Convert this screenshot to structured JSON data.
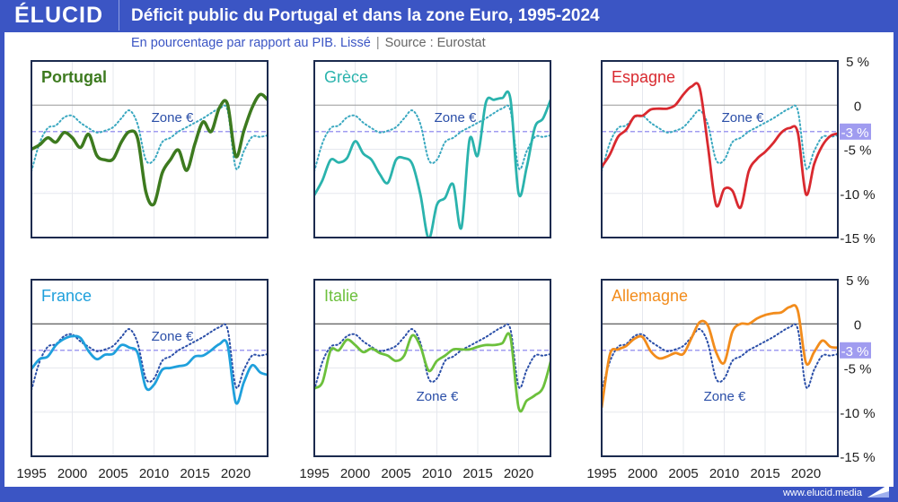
{
  "header": {
    "logo": "ÉLUCID",
    "title": "Déficit public du Portugal et dans la zone Euro, 1995-2024",
    "subtitle": "En pourcentage par rapport au PIB. Lissé",
    "source": "Source : Eurostat"
  },
  "footer": {
    "url": "www.elucid.media"
  },
  "colors": {
    "brand": "#3b55c4",
    "threshold": "#a09cf0",
    "zone_top": "#3aa8c0",
    "zone_bottom": "#2b4fa8"
  },
  "chart_data": {
    "type": "line",
    "layout": "small-multiples 2x3",
    "x": [
      1995,
      1996,
      1997,
      1998,
      1999,
      2000,
      2001,
      2002,
      2003,
      2004,
      2005,
      2006,
      2007,
      2008,
      2009,
      2010,
      2011,
      2012,
      2013,
      2014,
      2015,
      2016,
      2017,
      2018,
      2019,
      2020,
      2021,
      2022,
      2023,
      2024
    ],
    "xlim": [
      1995,
      2024
    ],
    "ylim": [
      -15,
      5
    ],
    "y_ticks": [
      "5 %",
      "0",
      "-3 %",
      "-5 %",
      "-10 %",
      "-15 %"
    ],
    "y_tick_values": [
      5,
      0,
      -3,
      -5,
      -10,
      -15
    ],
    "x_ticks": [
      "1995",
      "2000",
      "2005",
      "2010",
      "2015",
      "2020"
    ],
    "x_tick_values": [
      1995,
      2000,
      2005,
      2010,
      2015,
      2020
    ],
    "threshold": -3,
    "grid": true,
    "reference": {
      "label": "Zone €",
      "values": [
        -7.5,
        -4.3,
        -2.6,
        -2.3,
        -1.4,
        -1.2,
        -2.0,
        -2.6,
        -3.1,
        -2.9,
        -2.5,
        -1.5,
        -0.6,
        -2.2,
        -6.2,
        -6.2,
        -4.2,
        -3.7,
        -3.0,
        -2.5,
        -2.0,
        -1.5,
        -0.9,
        -0.4,
        -0.6,
        -7.1,
        -5.2,
        -3.6,
        -3.6,
        -3.4
      ]
    },
    "panels": [
      {
        "name": "Portugal",
        "color": "#3d7a1f",
        "bold": true,
        "ref_label_pos": "above",
        "values": [
          -5.0,
          -4.5,
          -3.7,
          -4.2,
          -3.1,
          -3.7,
          -4.8,
          -3.3,
          -5.7,
          -6.2,
          -6.1,
          -4.2,
          -3.0,
          -3.8,
          -9.8,
          -11.2,
          -7.7,
          -6.2,
          -5.1,
          -7.4,
          -4.4,
          -1.9,
          -3.0,
          -0.3,
          0.1,
          -5.8,
          -2.9,
          -0.3,
          1.2,
          0.5
        ]
      },
      {
        "name": "Grèce",
        "color": "#2ab3ad",
        "bold": false,
        "ref_label_pos": "above",
        "values": [
          -10.2,
          -8.5,
          -6.2,
          -6.5,
          -6.0,
          -4.1,
          -5.5,
          -6.2,
          -7.8,
          -8.8,
          -6.2,
          -6.0,
          -6.7,
          -10.2,
          -15.1,
          -11.3,
          -10.5,
          -9.0,
          -13.9,
          -3.9,
          -5.7,
          0.3,
          0.6,
          0.8,
          0.7,
          -10.0,
          -7.0,
          -2.5,
          -1.5,
          0.8
        ]
      },
      {
        "name": "Espagne",
        "color": "#d9292f",
        "bold": false,
        "ref_label_pos": "above",
        "values": [
          -7.0,
          -5.6,
          -3.6,
          -2.8,
          -1.3,
          -1.2,
          -0.5,
          -0.4,
          -0.4,
          0.0,
          1.2,
          2.1,
          1.9,
          -4.6,
          -11.3,
          -9.5,
          -9.7,
          -11.6,
          -7.5,
          -6.1,
          -5.3,
          -4.3,
          -3.1,
          -2.6,
          -3.1,
          -10.1,
          -6.7,
          -4.6,
          -3.5,
          -3.2
        ]
      },
      {
        "name": "France",
        "color": "#1fa0dc",
        "bold": false,
        "ref_label_pos": "above",
        "values": [
          -5.1,
          -4.0,
          -3.7,
          -2.4,
          -1.7,
          -1.4,
          -1.6,
          -3.1,
          -4.0,
          -3.5,
          -3.4,
          -2.4,
          -2.7,
          -3.3,
          -7.2,
          -6.9,
          -5.2,
          -5.0,
          -4.8,
          -4.6,
          -3.7,
          -3.6,
          -3.0,
          -2.3,
          -2.4,
          -8.9,
          -6.6,
          -4.7,
          -5.5,
          -5.8
        ]
      },
      {
        "name": "Italie",
        "color": "#6cc03c",
        "bold": false,
        "ref_label_pos": "below",
        "values": [
          -7.3,
          -6.6,
          -3.0,
          -3.0,
          -1.8,
          -2.4,
          -3.2,
          -2.8,
          -3.3,
          -3.6,
          -4.2,
          -3.6,
          -1.3,
          -2.6,
          -5.3,
          -4.2,
          -3.6,
          -2.9,
          -2.9,
          -2.9,
          -2.6,
          -2.4,
          -2.4,
          -2.2,
          -1.5,
          -9.5,
          -8.7,
          -8.1,
          -7.2,
          -4.0
        ]
      },
      {
        "name": "Allemagne",
        "color": "#f28c1c",
        "bold": false,
        "ref_label_pos": "below",
        "values": [
          -9.5,
          -3.5,
          -2.9,
          -2.5,
          -1.7,
          -1.5,
          -3.1,
          -3.9,
          -3.7,
          -3.3,
          -3.4,
          -1.6,
          0.2,
          -0.2,
          -3.2,
          -4.4,
          -0.9,
          0.0,
          0.0,
          0.6,
          1.0,
          1.2,
          1.3,
          1.9,
          1.5,
          -4.4,
          -3.2,
          -1.9,
          -2.6,
          -2.7
        ]
      }
    ]
  }
}
